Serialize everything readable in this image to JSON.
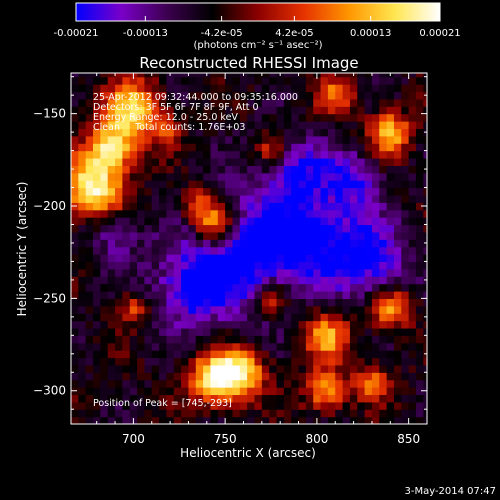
{
  "colorbar": {
    "tick_labels": [
      "-0.00021",
      "-0.00013",
      "-4.2e-05",
      "4.2e-05",
      "0.00013",
      "0.00021"
    ],
    "tick_values": [
      -0.00021,
      -0.00013,
      -4.2e-05,
      4.2e-05,
      0.00013,
      0.00021
    ],
    "range": [
      -0.00021,
      0.00021
    ],
    "units_text": "(photons cm⁻² s⁻¹ asec⁻²)",
    "colormap_stops": [
      "#0000ff",
      "#7a00c8",
      "#3c0050",
      "#000000",
      "#8c0000",
      "#e63200",
      "#ff9600",
      "#ffe650",
      "#ffffff"
    ]
  },
  "chart_data": {
    "type": "heatmap",
    "title": "Reconstructed RHESSI Image",
    "xlabel": "Heliocentric X (arcsec)",
    "ylabel": "Heliocentric Y (arcsec)",
    "xlim": [
      666,
      860
    ],
    "ylim": [
      -318,
      -128
    ],
    "x_ticks": [
      700,
      750,
      800,
      850
    ],
    "x_tick_labels": [
      "700",
      "750",
      "800",
      "850"
    ],
    "y_ticks": [
      -150,
      -200,
      -250,
      -300
    ],
    "y_tick_labels": [
      "−150",
      "−200",
      "−250",
      "−300"
    ],
    "annotations": [
      "25-Apr-2012 09:32:44.000 to 09:35:16.000",
      "Detectors: 3F 5F 6F 7F 8F 9F, Att 0",
      "Energy Range: 12.0 - 25.0 keV",
      "Clean     Total counts: 1.76E+03"
    ],
    "peak_label": "Position of Peak = [745,-293]",
    "peak_position": [
      745,
      -293
    ],
    "pixel_size_arcsec": 4,
    "bright_sources": [
      {
        "x": 678,
        "y": -190,
        "amp": 1.0,
        "r": 12
      },
      {
        "x": 700,
        "y": -148,
        "amp": 0.9,
        "r": 11
      },
      {
        "x": 688,
        "y": -168,
        "amp": 0.85,
        "r": 9
      },
      {
        "x": 745,
        "y": -293,
        "amp": 1.0,
        "r": 10
      },
      {
        "x": 760,
        "y": -290,
        "amp": 0.75,
        "r": 9
      },
      {
        "x": 745,
        "y": -210,
        "amp": 0.8,
        "r": 8
      },
      {
        "x": 735,
        "y": -200,
        "amp": 0.6,
        "r": 7
      },
      {
        "x": 805,
        "y": -270,
        "amp": 0.7,
        "r": 9
      },
      {
        "x": 775,
        "y": -250,
        "amp": 0.6,
        "r": 6
      },
      {
        "x": 840,
        "y": -255,
        "amp": 0.7,
        "r": 8
      },
      {
        "x": 840,
        "y": -160,
        "amp": 0.8,
        "r": 8
      },
      {
        "x": 805,
        "y": -300,
        "amp": 0.7,
        "r": 8
      },
      {
        "x": 830,
        "y": -295,
        "amp": 0.6,
        "r": 7
      },
      {
        "x": 700,
        "y": -255,
        "amp": 0.5,
        "r": 6
      },
      {
        "x": 810,
        "y": -140,
        "amp": 0.55,
        "r": 7
      },
      {
        "x": 775,
        "y": -170,
        "amp": 0.4,
        "r": 6
      },
      {
        "x": 720,
        "y": -160,
        "amp": 0.35,
        "r": 5
      }
    ],
    "dim_regions": [
      {
        "x": 760,
        "y": -225,
        "amp": -0.7,
        "r": 22
      },
      {
        "x": 800,
        "y": -215,
        "amp": -0.6,
        "r": 18
      },
      {
        "x": 730,
        "y": -245,
        "amp": -0.55,
        "r": 14
      },
      {
        "x": 830,
        "y": -230,
        "amp": -0.6,
        "r": 14
      },
      {
        "x": 690,
        "y": -215,
        "amp": -0.4,
        "r": 10
      },
      {
        "x": 790,
        "y": -180,
        "amp": -0.5,
        "r": 12
      },
      {
        "x": 820,
        "y": -185,
        "amp": -0.5,
        "r": 10
      }
    ]
  },
  "footer": {
    "date_stamp": "3-May-2014 07:47"
  }
}
